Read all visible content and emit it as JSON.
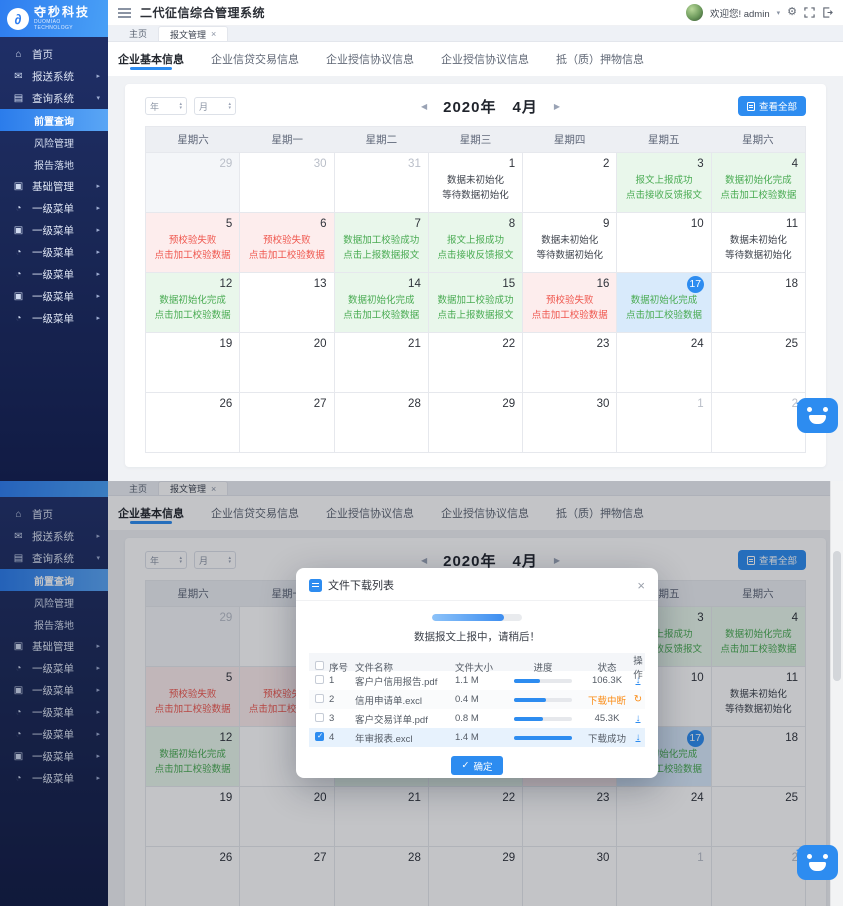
{
  "app": {
    "title": "二代征信综合管理系统",
    "welcome": "欢迎您! admin",
    "logo": {
      "name": "夺秒科技",
      "subtitle": "DUOMIAO TECHNOLOGY"
    }
  },
  "colors": {
    "accent": "#2d8cf0",
    "success": "#49ab52",
    "error": "#ef574e",
    "warning": "#fa8c16",
    "sidebar": "#1a2857",
    "today_bg": "#d8eafb"
  },
  "icons": {
    "close": "×",
    "caret_down": "▾",
    "caret_up": "▴",
    "arrow_left": "◀",
    "arrow_right": "▶",
    "gear": "⚙",
    "check": "✓",
    "download": "↓",
    "refresh": "↻"
  },
  "tabs": {
    "home": "主页",
    "current": "报文管理"
  },
  "sidebar": {
    "items": [
      {
        "label": "首页",
        "icon": "⌂",
        "arrow": "",
        "cls": "lv1"
      },
      {
        "label": "报送系统",
        "icon": "✉",
        "arrow": "▸",
        "cls": "lv1"
      },
      {
        "label": "查询系统",
        "icon": "▤",
        "arrow": "▾",
        "cls": "lv1"
      },
      {
        "label": "前置查询",
        "icon": "",
        "arrow": "",
        "cls": "lv2 active"
      },
      {
        "label": "风险管理",
        "icon": "",
        "arrow": "",
        "cls": "lv2"
      },
      {
        "label": "报告落地",
        "icon": "",
        "arrow": "",
        "cls": "lv2"
      },
      {
        "label": "基础管理",
        "icon": "▣",
        "arrow": "▸",
        "cls": "lv1"
      },
      {
        "label": "一级菜单",
        "icon": "◔",
        "arrow": "▸",
        "cls": "lv1"
      },
      {
        "label": "一级菜单",
        "icon": "▣",
        "arrow": "▸",
        "cls": "lv1"
      },
      {
        "label": "一级菜单",
        "icon": "◔",
        "arrow": "▸",
        "cls": "lv1"
      },
      {
        "label": "一级菜单",
        "icon": "◔",
        "arrow": "▸",
        "cls": "lv1"
      },
      {
        "label": "一级菜单",
        "icon": "▣",
        "arrow": "▸",
        "cls": "lv1"
      },
      {
        "label": "一级菜单",
        "icon": "◔",
        "arrow": "▸",
        "cls": "lv1"
      }
    ]
  },
  "subtabs": {
    "items": [
      {
        "label": "企业基本信息",
        "cls": "active"
      },
      {
        "label": "企业信贷交易信息",
        "cls": ""
      },
      {
        "label": "企业授信协议信息",
        "cls": ""
      },
      {
        "label": "企业授信协议信息",
        "cls": ""
      },
      {
        "label": "抵（质）押物信息",
        "cls": ""
      }
    ]
  },
  "calendar": {
    "year_placeholder": "年",
    "month_placeholder": "月",
    "year_label": "2020年",
    "month_label": "4月",
    "view_all": "查看全部",
    "day_headers": [
      "星期六",
      "星期一",
      "星期二",
      "星期三",
      "星期四",
      "星期五",
      "星期六"
    ],
    "cells": [
      {
        "day": "29",
        "cls": "other dim",
        "l1": "",
        "l2": ""
      },
      {
        "day": "30",
        "cls": "other",
        "l1": "",
        "l2": ""
      },
      {
        "day": "31",
        "cls": "other",
        "l1": "",
        "l2": ""
      },
      {
        "day": "1",
        "cls": "plain",
        "l1": "数据未初始化",
        "l2": "等待数据初始化"
      },
      {
        "day": "2",
        "cls": "",
        "l1": "",
        "l2": ""
      },
      {
        "day": "3",
        "cls": "green",
        "l1": "报文上报成功",
        "l2": "点击接收反馈报文"
      },
      {
        "day": "4",
        "cls": "green",
        "l1": "数据初始化完成",
        "l2": "点击加工校验数据"
      },
      {
        "day": "5",
        "cls": "red",
        "l1": "预校验失败",
        "l2": "点击加工校验数据"
      },
      {
        "day": "6",
        "cls": "red",
        "l1": "预校验失败",
        "l2": "点击加工校验数据"
      },
      {
        "day": "7",
        "cls": "green",
        "l1": "数据加工校验成功",
        "l2": "点击上报数据报文"
      },
      {
        "day": "8",
        "cls": "green",
        "l1": "报文上报成功",
        "l2": "点击接收反馈报文"
      },
      {
        "day": "9",
        "cls": "plain",
        "l1": "数据未初始化",
        "l2": "等待数据初始化"
      },
      {
        "day": "10",
        "cls": "",
        "l1": "",
        "l2": ""
      },
      {
        "day": "11",
        "cls": "plain",
        "l1": "数据未初始化",
        "l2": "等待数据初始化"
      },
      {
        "day": "12",
        "cls": "green",
        "l1": "数据初始化完成",
        "l2": "点击加工校验数据"
      },
      {
        "day": "13",
        "cls": "",
        "l1": "",
        "l2": ""
      },
      {
        "day": "14",
        "cls": "green",
        "l1": "数据初始化完成",
        "l2": "点击加工校验数据"
      },
      {
        "day": "15",
        "cls": "green",
        "l1": "数据加工校验成功",
        "l2": "点击上报数据报文"
      },
      {
        "day": "16",
        "cls": "red",
        "l1": "预校验失败",
        "l2": "点击加工校验数据"
      },
      {
        "day": "17",
        "cls": "today",
        "l1": "数据初始化完成",
        "l2": "点击加工校验数据"
      },
      {
        "day": "18",
        "cls": "",
        "l1": "",
        "l2": ""
      },
      {
        "day": "19",
        "cls": "",
        "l1": "",
        "l2": ""
      },
      {
        "day": "20",
        "cls": "",
        "l1": "",
        "l2": ""
      },
      {
        "day": "21",
        "cls": "",
        "l1": "",
        "l2": ""
      },
      {
        "day": "22",
        "cls": "",
        "l1": "",
        "l2": ""
      },
      {
        "day": "23",
        "cls": "",
        "l1": "",
        "l2": ""
      },
      {
        "day": "24",
        "cls": "",
        "l1": "",
        "l2": ""
      },
      {
        "day": "25",
        "cls": "",
        "l1": "",
        "l2": ""
      },
      {
        "day": "26",
        "cls": "",
        "l1": "",
        "l2": ""
      },
      {
        "day": "27",
        "cls": "",
        "l1": "",
        "l2": ""
      },
      {
        "day": "28",
        "cls": "",
        "l1": "",
        "l2": ""
      },
      {
        "day": "29",
        "cls": "",
        "l1": "",
        "l2": ""
      },
      {
        "day": "30",
        "cls": "",
        "l1": "",
        "l2": ""
      },
      {
        "day": "1",
        "cls": "other",
        "l1": "",
        "l2": ""
      },
      {
        "day": "2",
        "cls": "other",
        "l1": "",
        "l2": ""
      }
    ]
  },
  "modal": {
    "title": "文件下载列表",
    "progress_percent": 80,
    "hint": "数据报文上报中，请稍后！",
    "confirm_label": "确定",
    "table": {
      "headers": {
        "no": "序号",
        "name": "文件名称",
        "size": "文件大小",
        "progress": "进度",
        "status": "状态",
        "action": "操作"
      },
      "rows": [
        {
          "no": "1",
          "name": "客户户信用报告.pdf",
          "size": "1.1 M",
          "progress": 45,
          "status": "106.3K",
          "status_cls": "",
          "action_glyph": "↓",
          "action_cls": "act-download",
          "cb_cls": "",
          "row_cls": ""
        },
        {
          "no": "2",
          "name": "信用申请单.excl",
          "size": "0.4 M",
          "progress": 55,
          "status": "下载中断",
          "status_cls": "warn",
          "action_glyph": "↻",
          "action_cls": "act-refresh",
          "cb_cls": "",
          "row_cls": "striped"
        },
        {
          "no": "3",
          "name": "客户交易详单.pdf",
          "size": "0.8 M",
          "progress": 50,
          "status": "45.3K",
          "status_cls": "",
          "action_glyph": "↓",
          "action_cls": "act-download",
          "cb_cls": "",
          "row_cls": ""
        },
        {
          "no": "4",
          "name": "年审报表.excl",
          "size": "1.4 M",
          "progress": 100,
          "status": "下载成功",
          "status_cls": "",
          "action_glyph": "↓",
          "action_cls": "act-download",
          "cb_cls": "checked",
          "row_cls": "selected"
        }
      ]
    }
  }
}
